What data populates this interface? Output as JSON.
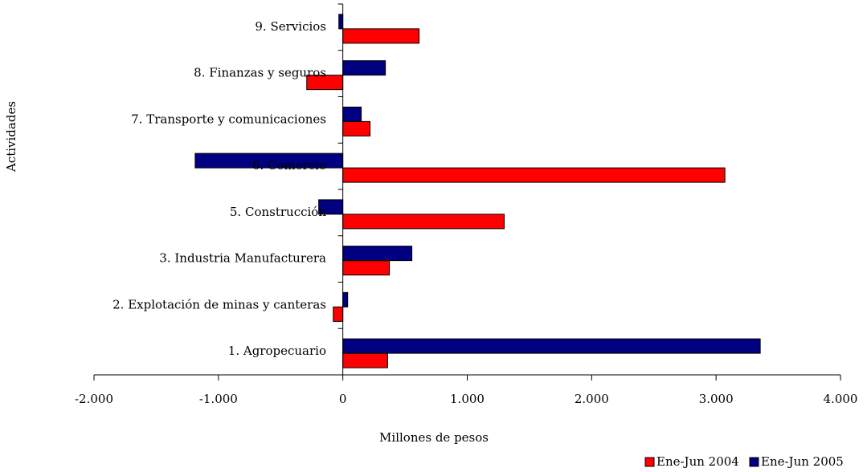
{
  "chart_data": {
    "type": "barh",
    "xlabel": "Millones de pesos",
    "ylabel": "Actividades",
    "categories": [
      "1. Agropecuario",
      "2. Explotación de minas y canteras",
      "3. Industria Manufacturera",
      "5. Construcción",
      "6. Comercio",
      "7. Transporte y comunicaciones",
      "8. Finanzas y seguros",
      "9. Servicios"
    ],
    "series": [
      {
        "name": "Ene-Jun 2004",
        "color": "#ff0000",
        "values": [
          360,
          -77,
          374,
          1297,
          3071,
          219,
          -290,
          613
        ]
      },
      {
        "name": "Ene-Jun 2005",
        "color": "#000080",
        "values": [
          3355,
          39,
          555,
          -194,
          -1187,
          148,
          342,
          -32
        ]
      }
    ],
    "xlim": [
      -2000,
      4000
    ],
    "xticks": [
      {
        "value": -2000,
        "label": "-2.000"
      },
      {
        "value": -1000,
        "label": "-1.000"
      },
      0,
      {
        "value": 1000,
        "label": "1.000"
      },
      {
        "value": 2000,
        "label": "2.000"
      },
      {
        "value": 3000,
        "label": "3.000"
      },
      {
        "value": 4000,
        "label": "4.000"
      }
    ],
    "legend": "bottom-right"
  }
}
